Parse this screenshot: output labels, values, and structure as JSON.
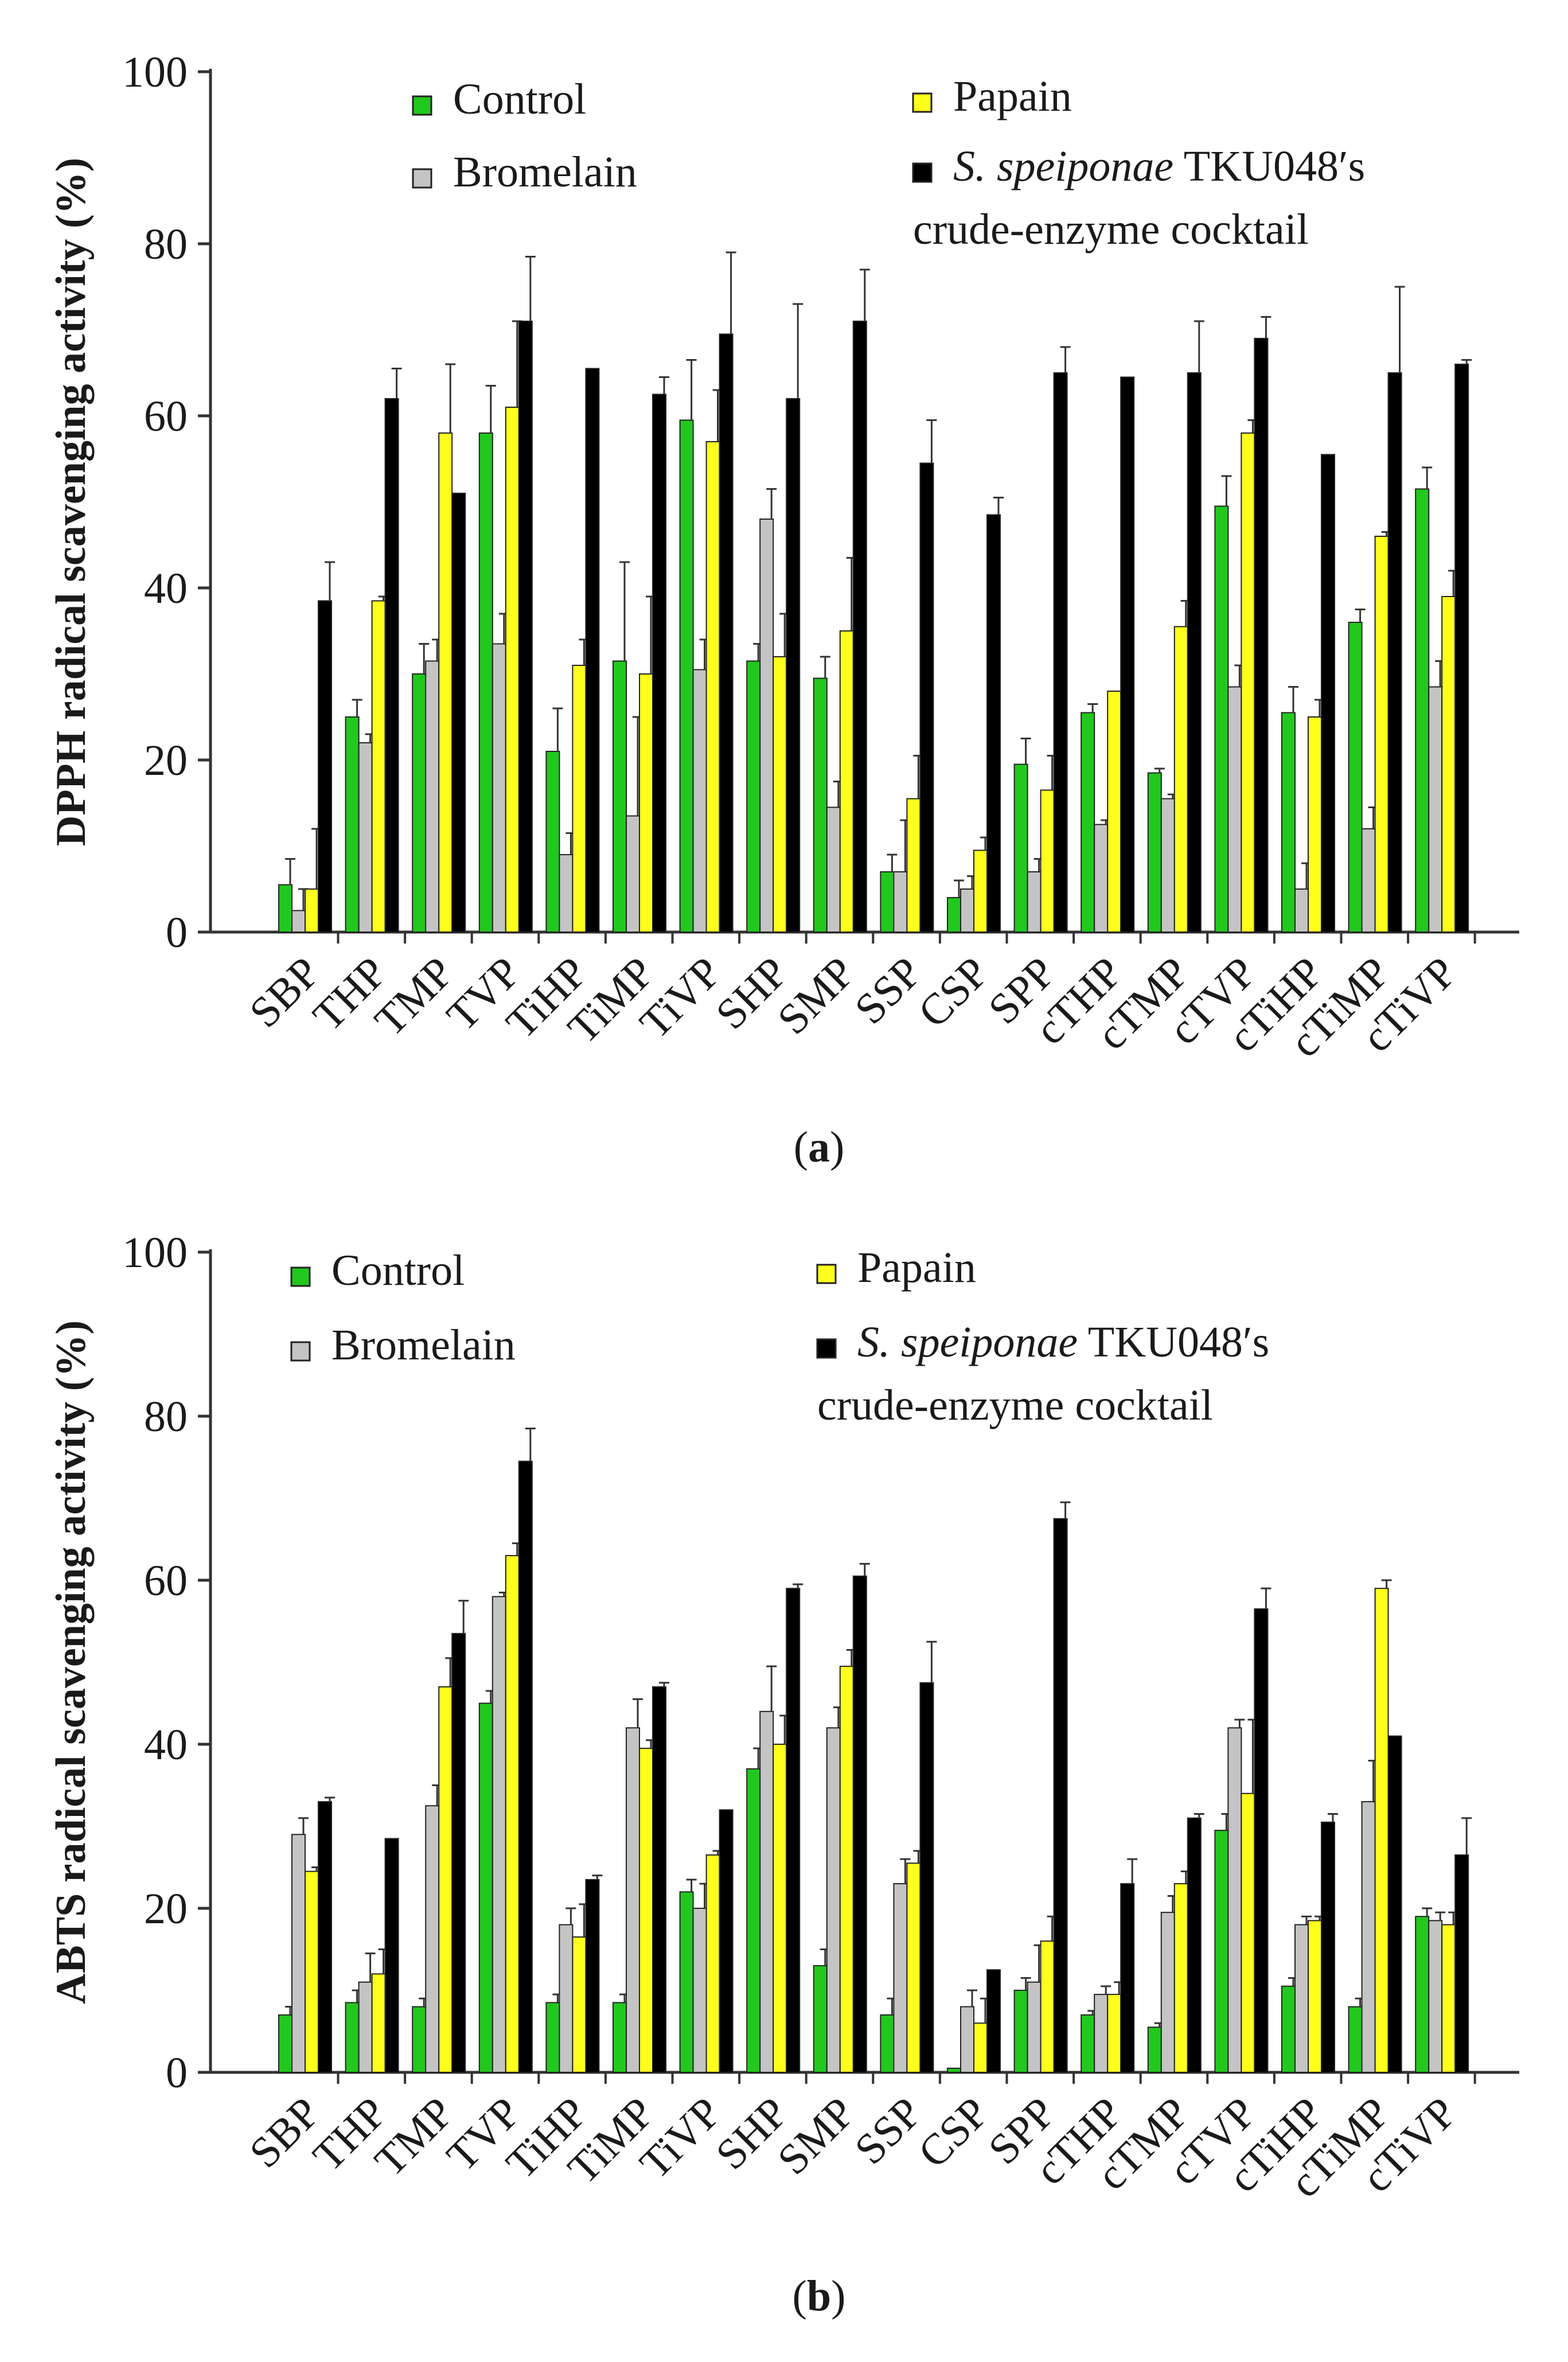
{
  "colors": {
    "Control": "#22c81e",
    "Bromelain": "#c4c4c4",
    "Papain": "#ffff1e",
    "TKU048": "#000000",
    "axis": "#333333"
  },
  "chart_data": [
    {
      "type": "bar",
      "panel_label": "a",
      "ylabel": "DPPH radical scavenging activity (%)",
      "xlabel": "",
      "ylim": [
        0,
        100
      ],
      "yticks": [
        0,
        20,
        40,
        60,
        80,
        100
      ],
      "legend_position": "top",
      "legend": [
        {
          "key": "Control",
          "label_roman": "Control",
          "label_italic": ""
        },
        {
          "key": "Bromelain",
          "label_roman": "Bromelain",
          "label_italic": ""
        },
        {
          "key": "Papain",
          "label_roman": "Papain",
          "label_italic": ""
        },
        {
          "key": "TKU048",
          "label_italic": "S. speiponae",
          "label_roman": " TKU048′s",
          "label_line2": "crude-enzyme cocktail"
        }
      ],
      "categories": [
        "SBP",
        "THP",
        "TMP",
        "TVP",
        "TiHP",
        "TiMP",
        "TiVP",
        "SHP",
        "SMP",
        "SSP",
        "CSP",
        "SPP",
        "cTHP",
        "cTMP",
        "cTVP",
        "cTiHP",
        "cTiMP",
        "cTiVP"
      ],
      "series": [
        {
          "key": "Control",
          "name": "Control",
          "values": [
            5.5,
            25,
            30,
            58,
            21,
            31.5,
            59.5,
            31.5,
            29.5,
            7,
            4,
            19.5,
            25.5,
            18.5,
            49.5,
            25.5,
            36,
            51.5
          ],
          "errors": [
            3,
            2,
            3.5,
            5.5,
            5,
            11.5,
            7,
            2,
            2.5,
            2,
            2,
            3,
            1,
            0.5,
            3.5,
            3,
            1.5,
            2.5
          ]
        },
        {
          "key": "Bromelain",
          "name": "Bromelain",
          "values": [
            2.5,
            22,
            31.5,
            33.5,
            9,
            13.5,
            30.5,
            48,
            14.5,
            7,
            5,
            7,
            12.5,
            15.5,
            28.5,
            5,
            12,
            28.5
          ],
          "errors": [
            2.5,
            1,
            2.5,
            3.5,
            2.5,
            11.5,
            3.5,
            3.5,
            3,
            6,
            1.5,
            1.5,
            0.5,
            0.5,
            2.5,
            3,
            2.5,
            3
          ]
        },
        {
          "key": "Papain",
          "name": "Papain",
          "values": [
            5,
            38.5,
            58,
            61,
            31,
            30,
            57,
            32,
            35,
            15.5,
            9.5,
            16.5,
            28,
            35.5,
            58,
            25,
            46,
            39
          ],
          "errors": [
            7,
            0.5,
            8,
            10,
            3,
            9,
            6,
            5,
            8.5,
            5,
            1.5,
            4,
            0,
            3,
            1.5,
            2,
            0.5,
            3
          ]
        },
        {
          "key": "TKU048",
          "name": "S. speiponae TKU048′s crude-enzyme cocktail",
          "values": [
            38.5,
            62,
            51,
            71,
            65.5,
            62.5,
            69.5,
            62,
            71,
            54.5,
            48.5,
            65,
            64.5,
            65,
            69,
            55.5,
            65,
            66
          ],
          "errors": [
            4.5,
            3.5,
            0,
            7.5,
            0,
            2,
            9.5,
            11,
            6,
            5,
            2,
            3,
            0,
            6,
            2.5,
            0,
            10,
            0.5
          ]
        }
      ]
    },
    {
      "type": "bar",
      "panel_label": "b",
      "ylabel": "ABTS radical scavenging activity (%)",
      "xlabel": "",
      "ylim": [
        0,
        100
      ],
      "yticks": [
        0,
        20,
        40,
        60,
        80,
        100
      ],
      "legend_position": "top",
      "legend": [
        {
          "key": "Control",
          "label_roman": "Control",
          "label_italic": ""
        },
        {
          "key": "Bromelain",
          "label_roman": "Bromelain",
          "label_italic": ""
        },
        {
          "key": "Papain",
          "label_roman": "Papain",
          "label_italic": ""
        },
        {
          "key": "TKU048",
          "label_italic": "S. speiponae",
          "label_roman": " TKU048′s",
          "label_line2": "crude-enzyme cocktail"
        }
      ],
      "categories": [
        "SBP",
        "THP",
        "TMP",
        "TVP",
        "TiHP",
        "TiMP",
        "TiVP",
        "SHP",
        "SMP",
        "SSP",
        "CSP",
        "SPP",
        "cTHP",
        "cTMP",
        "cTVP",
        "cTiHP",
        "cTiMP",
        "cTiVP"
      ],
      "series": [
        {
          "key": "Control",
          "name": "Control",
          "values": [
            7,
            8.5,
            8,
            45,
            8.5,
            8.5,
            22,
            37,
            13,
            7,
            0.5,
            10,
            7,
            5.5,
            29.5,
            10.5,
            8,
            19
          ],
          "errors": [
            1,
            1.5,
            1,
            1.5,
            1,
            1,
            1.5,
            2.5,
            2,
            2,
            0,
            1.5,
            0.5,
            0.5,
            2,
            1,
            1,
            1
          ]
        },
        {
          "key": "Bromelain",
          "name": "Bromelain",
          "values": [
            29,
            11,
            32.5,
            58,
            18,
            42,
            20,
            44,
            42,
            23,
            8,
            11,
            9.5,
            19.5,
            42,
            18,
            33,
            18.5
          ],
          "errors": [
            2,
            3.5,
            2.5,
            0.5,
            2,
            3.5,
            3,
            5.5,
            2.5,
            3,
            2,
            4.5,
            1,
            2,
            1,
            1,
            5,
            1
          ]
        },
        {
          "key": "Papain",
          "name": "Papain",
          "values": [
            24.5,
            12,
            47,
            63,
            16.5,
            39.5,
            26.5,
            40,
            49.5,
            25.5,
            6,
            16,
            9.5,
            23,
            34,
            18.5,
            59,
            18
          ],
          "errors": [
            0.5,
            3,
            3.5,
            1.5,
            4,
            1,
            0.5,
            3.5,
            2,
            1.5,
            3,
            3,
            1.5,
            1.5,
            9,
            0.5,
            1,
            1.5
          ]
        },
        {
          "key": "TKU048",
          "name": "S. speiponae TKU048′s crude-enzyme cocktail",
          "values": [
            33,
            28.5,
            53.5,
            74.5,
            23.5,
            47,
            32,
            59,
            60.5,
            47.5,
            12.5,
            67.5,
            23,
            31,
            56.5,
            30.5,
            41,
            26.5
          ],
          "errors": [
            0.5,
            0,
            4,
            4,
            0.5,
            0.5,
            0,
            0.5,
            1.5,
            5,
            0,
            2,
            3,
            0.5,
            2.5,
            1,
            0,
            4.5
          ]
        }
      ]
    }
  ]
}
